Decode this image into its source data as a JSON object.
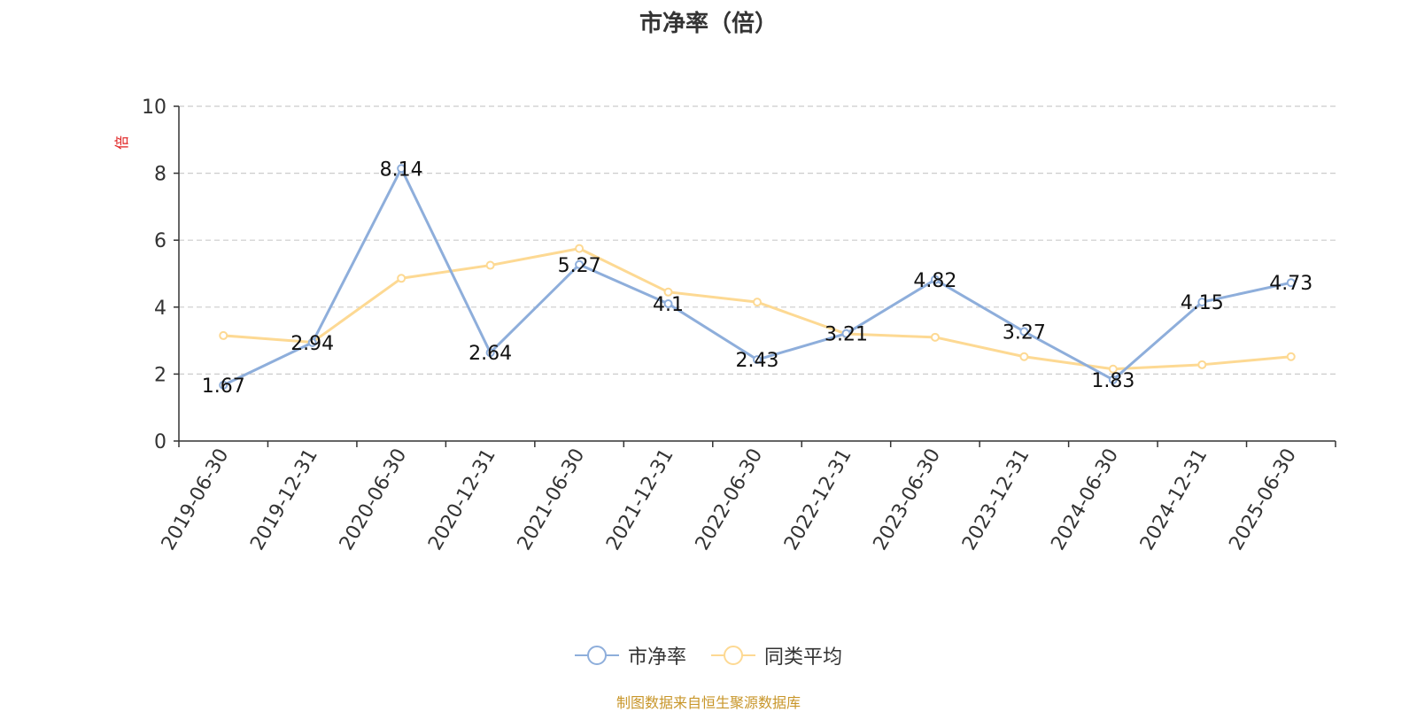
{
  "chart_data": {
    "type": "line",
    "title": "市净率（倍）",
    "ylabel": "倍",
    "ylim": [
      0,
      10
    ],
    "yticks": [
      "0",
      "2",
      "4",
      "6",
      "8",
      "10"
    ],
    "grid": true,
    "legend_position": "bottom",
    "categories": [
      "2019-06-30",
      "2019-12-31",
      "2020-06-30",
      "2020-12-31",
      "2021-06-30",
      "2021-12-31",
      "2022-06-30",
      "2022-12-31",
      "2023-06-30",
      "2023-12-31",
      "2024-06-30",
      "2024-12-31",
      "2025-06-30"
    ],
    "series": [
      {
        "name": "市净率",
        "color": "#8eaedb",
        "show_labels": true,
        "values": [
          1.67,
          2.94,
          8.14,
          2.64,
          5.27,
          4.1,
          2.43,
          3.21,
          4.82,
          3.27,
          1.83,
          4.15,
          4.73
        ],
        "labels": [
          "1.67",
          "2.94",
          "8.14",
          "2.64",
          "5.27",
          "4.1",
          "2.43",
          "3.21",
          "4.82",
          "3.27",
          "1.83",
          "4.15",
          "4.73"
        ]
      },
      {
        "name": "同类平均",
        "color": "#fdd993",
        "show_labels": false,
        "values": [
          3.15,
          2.95,
          4.86,
          5.25,
          5.75,
          4.45,
          4.15,
          3.2,
          3.1,
          2.52,
          2.15,
          2.28,
          2.52
        ]
      }
    ]
  },
  "source": {
    "text": "制图数据来自恒生聚源数据库",
    "color": "#c8962a"
  },
  "ylabel_color": "#e02020"
}
